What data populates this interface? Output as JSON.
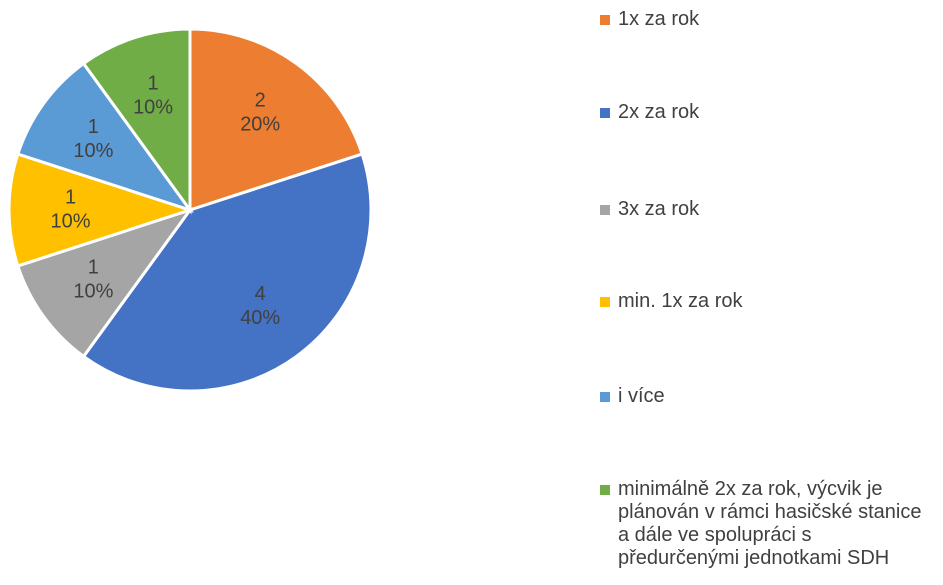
{
  "chart_data": {
    "type": "pie",
    "categories": [
      "1x za rok",
      "2x za rok",
      "3x za rok",
      "min. 1x za rok",
      "i více",
      "minimálně 2x za rok, výcvik je plánován v rámci hasičské stanice a dále ve spolupráci s předurčenými jednotkami SDH"
    ],
    "values": [
      2,
      4,
      1,
      1,
      1,
      1
    ],
    "percent_labels": [
      "20%",
      "40%",
      "10%",
      "10%",
      "10%",
      "10%"
    ],
    "colors": [
      "#ed7d31",
      "#4472c4",
      "#a5a5a5",
      "#ffc000",
      "#5b9bd5",
      "#70ad47"
    ],
    "legend": "right"
  }
}
